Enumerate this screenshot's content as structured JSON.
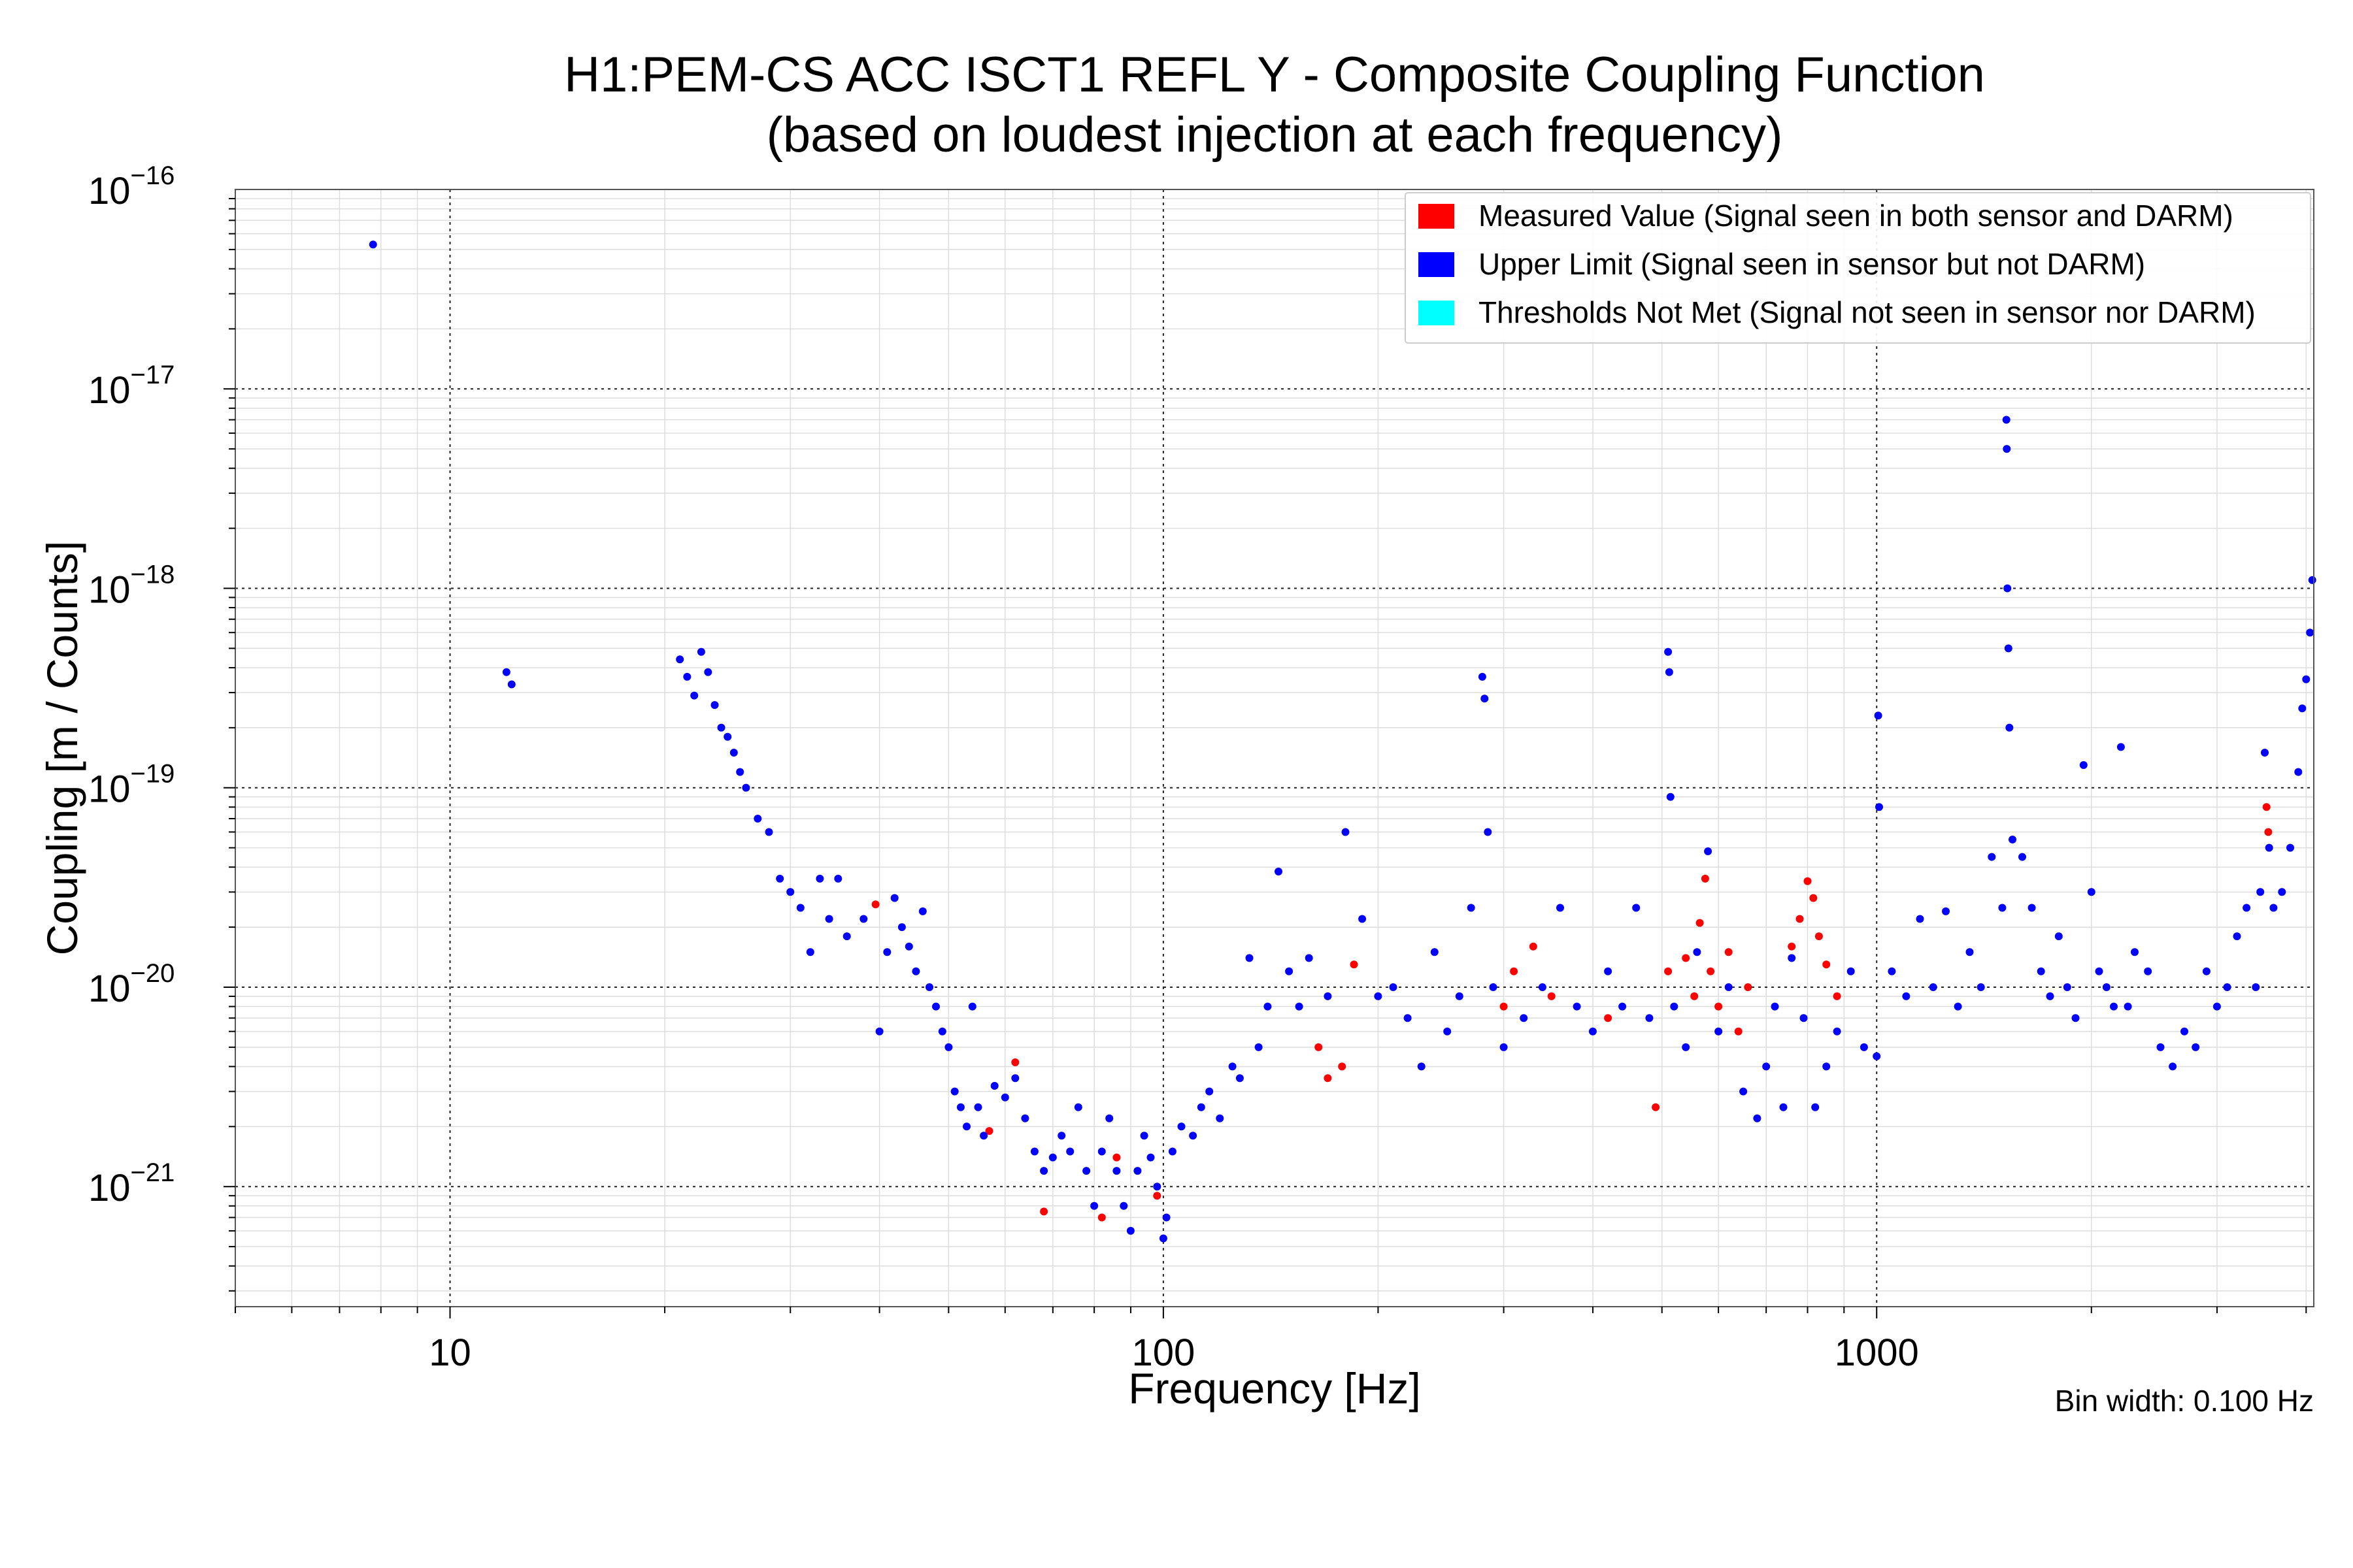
{
  "chart_data": {
    "type": "scatter",
    "title": "H1:PEM-CS ACC ISCT1 REFL Y - Composite Coupling Function",
    "subtitle": "(based on loudest injection at each frequency)",
    "xlabel": "Frequency [Hz]",
    "ylabel": "Coupling [m / Counts]",
    "x_scale": "log",
    "y_scale": "log",
    "xlim": [
      5,
      4100
    ],
    "ylim": [
      2.5e-22,
      1e-16
    ],
    "x_ticks": [
      {
        "value": 10,
        "label": "10"
      },
      {
        "value": 100,
        "label": "100"
      },
      {
        "value": 1000,
        "label": "1000"
      }
    ],
    "y_ticks": [
      {
        "value": 1e-16,
        "base": "10",
        "exp": "−16"
      },
      {
        "value": 1e-17,
        "base": "10",
        "exp": "−17"
      },
      {
        "value": 1e-18,
        "base": "10",
        "exp": "−18"
      },
      {
        "value": 1e-19,
        "base": "10",
        "exp": "−19"
      },
      {
        "value": 1e-20,
        "base": "10",
        "exp": "−20"
      },
      {
        "value": 1e-21,
        "base": "10",
        "exp": "−21"
      }
    ],
    "grid": true,
    "legend_position": "top-right",
    "note": "Bin width: 0.100 Hz",
    "series": [
      {
        "name": "Measured Value (Signal seen in both sensor and DARM)",
        "color": "#ff0000",
        "points": [
          [
            39.5,
            2.6e-20
          ],
          [
            57,
            1.9e-21
          ],
          [
            62,
            4.2e-21
          ],
          [
            68,
            7.5e-22
          ],
          [
            82,
            7e-22
          ],
          [
            86,
            1.4e-21
          ],
          [
            98,
            9e-22
          ],
          [
            165,
            5e-21
          ],
          [
            170,
            3.5e-21
          ],
          [
            178,
            4e-21
          ],
          [
            185,
            1.3e-20
          ],
          [
            300,
            8e-21
          ],
          [
            310,
            1.2e-20
          ],
          [
            330,
            1.6e-20
          ],
          [
            350,
            9e-21
          ],
          [
            420,
            7e-21
          ],
          [
            490,
            2.5e-21
          ],
          [
            510,
            1.2e-20
          ],
          [
            540,
            1.4e-20
          ],
          [
            555,
            9e-21
          ],
          [
            565,
            2.1e-20
          ],
          [
            575,
            3.5e-20
          ],
          [
            585,
            1.2e-20
          ],
          [
            600,
            8e-21
          ],
          [
            620,
            1.5e-20
          ],
          [
            640,
            6e-21
          ],
          [
            660,
            1e-20
          ],
          [
            760,
            1.6e-20
          ],
          [
            780,
            2.2e-20
          ],
          [
            800,
            3.4e-20
          ],
          [
            815,
            2.8e-20
          ],
          [
            830,
            1.8e-20
          ],
          [
            850,
            1.3e-20
          ],
          [
            880,
            9e-21
          ],
          [
            3520,
            8e-20
          ],
          [
            3540,
            6e-20
          ]
        ]
      },
      {
        "name": "Upper Limit (Signal seen in sensor but not DARM)",
        "color": "#0000ff",
        "points": [
          [
            7.8,
            5.3e-17
          ],
          [
            12,
            3.8e-19
          ],
          [
            12.2,
            3.3e-19
          ],
          [
            21,
            4.4e-19
          ],
          [
            21.5,
            3.6e-19
          ],
          [
            22,
            2.9e-19
          ],
          [
            22.5,
            4.8e-19
          ],
          [
            23,
            3.8e-19
          ],
          [
            23.5,
            2.6e-19
          ],
          [
            24,
            2e-19
          ],
          [
            24.5,
            1.8e-19
          ],
          [
            25,
            1.5e-19
          ],
          [
            25.5,
            1.2e-19
          ],
          [
            26,
            1e-19
          ],
          [
            27,
            7e-20
          ],
          [
            28,
            6e-20
          ],
          [
            29,
            3.5e-20
          ],
          [
            30,
            3e-20
          ],
          [
            31,
            2.5e-20
          ],
          [
            32,
            1.5e-20
          ],
          [
            33,
            3.5e-20
          ],
          [
            34,
            2.2e-20
          ],
          [
            35,
            3.5e-20
          ],
          [
            36,
            1.8e-20
          ],
          [
            38,
            2.2e-20
          ],
          [
            40,
            6e-21
          ],
          [
            41,
            1.5e-20
          ],
          [
            42,
            2.8e-20
          ],
          [
            43,
            2e-20
          ],
          [
            44,
            1.6e-20
          ],
          [
            45,
            1.2e-20
          ],
          [
            46,
            2.4e-20
          ],
          [
            47,
            1e-20
          ],
          [
            48,
            8e-21
          ],
          [
            49,
            6e-21
          ],
          [
            50,
            5e-21
          ],
          [
            51,
            3e-21
          ],
          [
            52,
            2.5e-21
          ],
          [
            53,
            2e-21
          ],
          [
            54,
            8e-21
          ],
          [
            55,
            2.5e-21
          ],
          [
            56,
            1.8e-21
          ],
          [
            58,
            3.2e-21
          ],
          [
            60,
            2.8e-21
          ],
          [
            62,
            3.5e-21
          ],
          [
            64,
            2.2e-21
          ],
          [
            66,
            1.5e-21
          ],
          [
            68,
            1.2e-21
          ],
          [
            70,
            1.4e-21
          ],
          [
            72,
            1.8e-21
          ],
          [
            74,
            1.5e-21
          ],
          [
            76,
            2.5e-21
          ],
          [
            78,
            1.2e-21
          ],
          [
            80,
            8e-22
          ],
          [
            82,
            1.5e-21
          ],
          [
            84,
            2.2e-21
          ],
          [
            86,
            1.2e-21
          ],
          [
            88,
            8e-22
          ],
          [
            90,
            6e-22
          ],
          [
            92,
            1.2e-21
          ],
          [
            94,
            1.8e-21
          ],
          [
            96,
            1.4e-21
          ],
          [
            98,
            1e-21
          ],
          [
            100,
            5.5e-22
          ],
          [
            101,
            7e-22
          ],
          [
            103,
            1.5e-21
          ],
          [
            106,
            2e-21
          ],
          [
            110,
            1.8e-21
          ],
          [
            113,
            2.5e-21
          ],
          [
            116,
            3e-21
          ],
          [
            120,
            2.2e-21
          ],
          [
            125,
            4e-21
          ],
          [
            128,
            3.5e-21
          ],
          [
            132,
            1.4e-20
          ],
          [
            136,
            5e-21
          ],
          [
            140,
            8e-21
          ],
          [
            145,
            3.8e-20
          ],
          [
            150,
            1.2e-20
          ],
          [
            155,
            8e-21
          ],
          [
            160,
            1.4e-20
          ],
          [
            170,
            9e-21
          ],
          [
            180,
            6e-20
          ],
          [
            190,
            2.2e-20
          ],
          [
            200,
            9e-21
          ],
          [
            210,
            1e-20
          ],
          [
            220,
            7e-21
          ],
          [
            230,
            4e-21
          ],
          [
            240,
            1.5e-20
          ],
          [
            250,
            6e-21
          ],
          [
            260,
            9e-21
          ],
          [
            270,
            2.5e-20
          ],
          [
            280,
            3.6e-19
          ],
          [
            282,
            2.8e-19
          ],
          [
            285,
            6e-20
          ],
          [
            290,
            1e-20
          ],
          [
            300,
            5e-21
          ],
          [
            320,
            7e-21
          ],
          [
            340,
            1e-20
          ],
          [
            360,
            2.5e-20
          ],
          [
            380,
            8e-21
          ],
          [
            400,
            6e-21
          ],
          [
            420,
            1.2e-20
          ],
          [
            440,
            8e-21
          ],
          [
            460,
            2.5e-20
          ],
          [
            480,
            7e-21
          ],
          [
            510,
            4.8e-19
          ],
          [
            512,
            3.8e-19
          ],
          [
            514,
            9e-20
          ],
          [
            520,
            8e-21
          ],
          [
            540,
            5e-21
          ],
          [
            560,
            1.5e-20
          ],
          [
            580,
            4.8e-20
          ],
          [
            600,
            6e-21
          ],
          [
            620,
            1e-20
          ],
          [
            650,
            3e-21
          ],
          [
            680,
            2.2e-21
          ],
          [
            700,
            4e-21
          ],
          [
            720,
            8e-21
          ],
          [
            740,
            2.5e-21
          ],
          [
            760,
            1.4e-20
          ],
          [
            790,
            7e-21
          ],
          [
            820,
            2.5e-21
          ],
          [
            850,
            4e-21
          ],
          [
            880,
            6e-21
          ],
          [
            920,
            1.2e-20
          ],
          [
            960,
            5e-21
          ],
          [
            1000,
            4.5e-21
          ],
          [
            1005,
            2.3e-19
          ],
          [
            1008,
            8e-20
          ],
          [
            1050,
            1.2e-20
          ],
          [
            1100,
            9e-21
          ],
          [
            1150,
            2.2e-20
          ],
          [
            1200,
            1e-20
          ],
          [
            1250,
            2.4e-20
          ],
          [
            1300,
            8e-21
          ],
          [
            1350,
            1.5e-20
          ],
          [
            1400,
            1e-20
          ],
          [
            1450,
            4.5e-20
          ],
          [
            1500,
            2.5e-20
          ],
          [
            1520,
            7e-18
          ],
          [
            1522,
            5e-18
          ],
          [
            1525,
            1e-18
          ],
          [
            1530,
            5e-19
          ],
          [
            1535,
            2e-19
          ],
          [
            1550,
            5.5e-20
          ],
          [
            1600,
            4.5e-20
          ],
          [
            1650,
            2.5e-20
          ],
          [
            1700,
            1.2e-20
          ],
          [
            1750,
            9e-21
          ],
          [
            1800,
            1.8e-20
          ],
          [
            1850,
            1e-20
          ],
          [
            1900,
            7e-21
          ],
          [
            1950,
            1.3e-19
          ],
          [
            2000,
            3e-20
          ],
          [
            2050,
            1.2e-20
          ],
          [
            2100,
            1e-20
          ],
          [
            2150,
            8e-21
          ],
          [
            2200,
            1.6e-19
          ],
          [
            2250,
            8e-21
          ],
          [
            2300,
            1.5e-20
          ],
          [
            2400,
            1.2e-20
          ],
          [
            2500,
            5e-21
          ],
          [
            2600,
            4e-21
          ],
          [
            2700,
            6e-21
          ],
          [
            2800,
            5e-21
          ],
          [
            2900,
            1.2e-20
          ],
          [
            3000,
            8e-21
          ],
          [
            3100,
            1e-20
          ],
          [
            3200,
            1.8e-20
          ],
          [
            3300,
            2.5e-20
          ],
          [
            3400,
            1e-20
          ],
          [
            3450,
            3e-20
          ],
          [
            3500,
            1.5e-19
          ],
          [
            3550,
            5e-20
          ],
          [
            3600,
            2.5e-20
          ],
          [
            3700,
            3e-20
          ],
          [
            3800,
            5e-20
          ],
          [
            3900,
            1.2e-19
          ],
          [
            3950,
            2.5e-19
          ],
          [
            4000,
            3.5e-19
          ],
          [
            4050,
            6e-19
          ],
          [
            4080,
            1.1e-18
          ]
        ]
      },
      {
        "name": "Thresholds Not Met (Signal not seen in sensor nor DARM)",
        "color": "#00ffff",
        "points": []
      }
    ]
  }
}
